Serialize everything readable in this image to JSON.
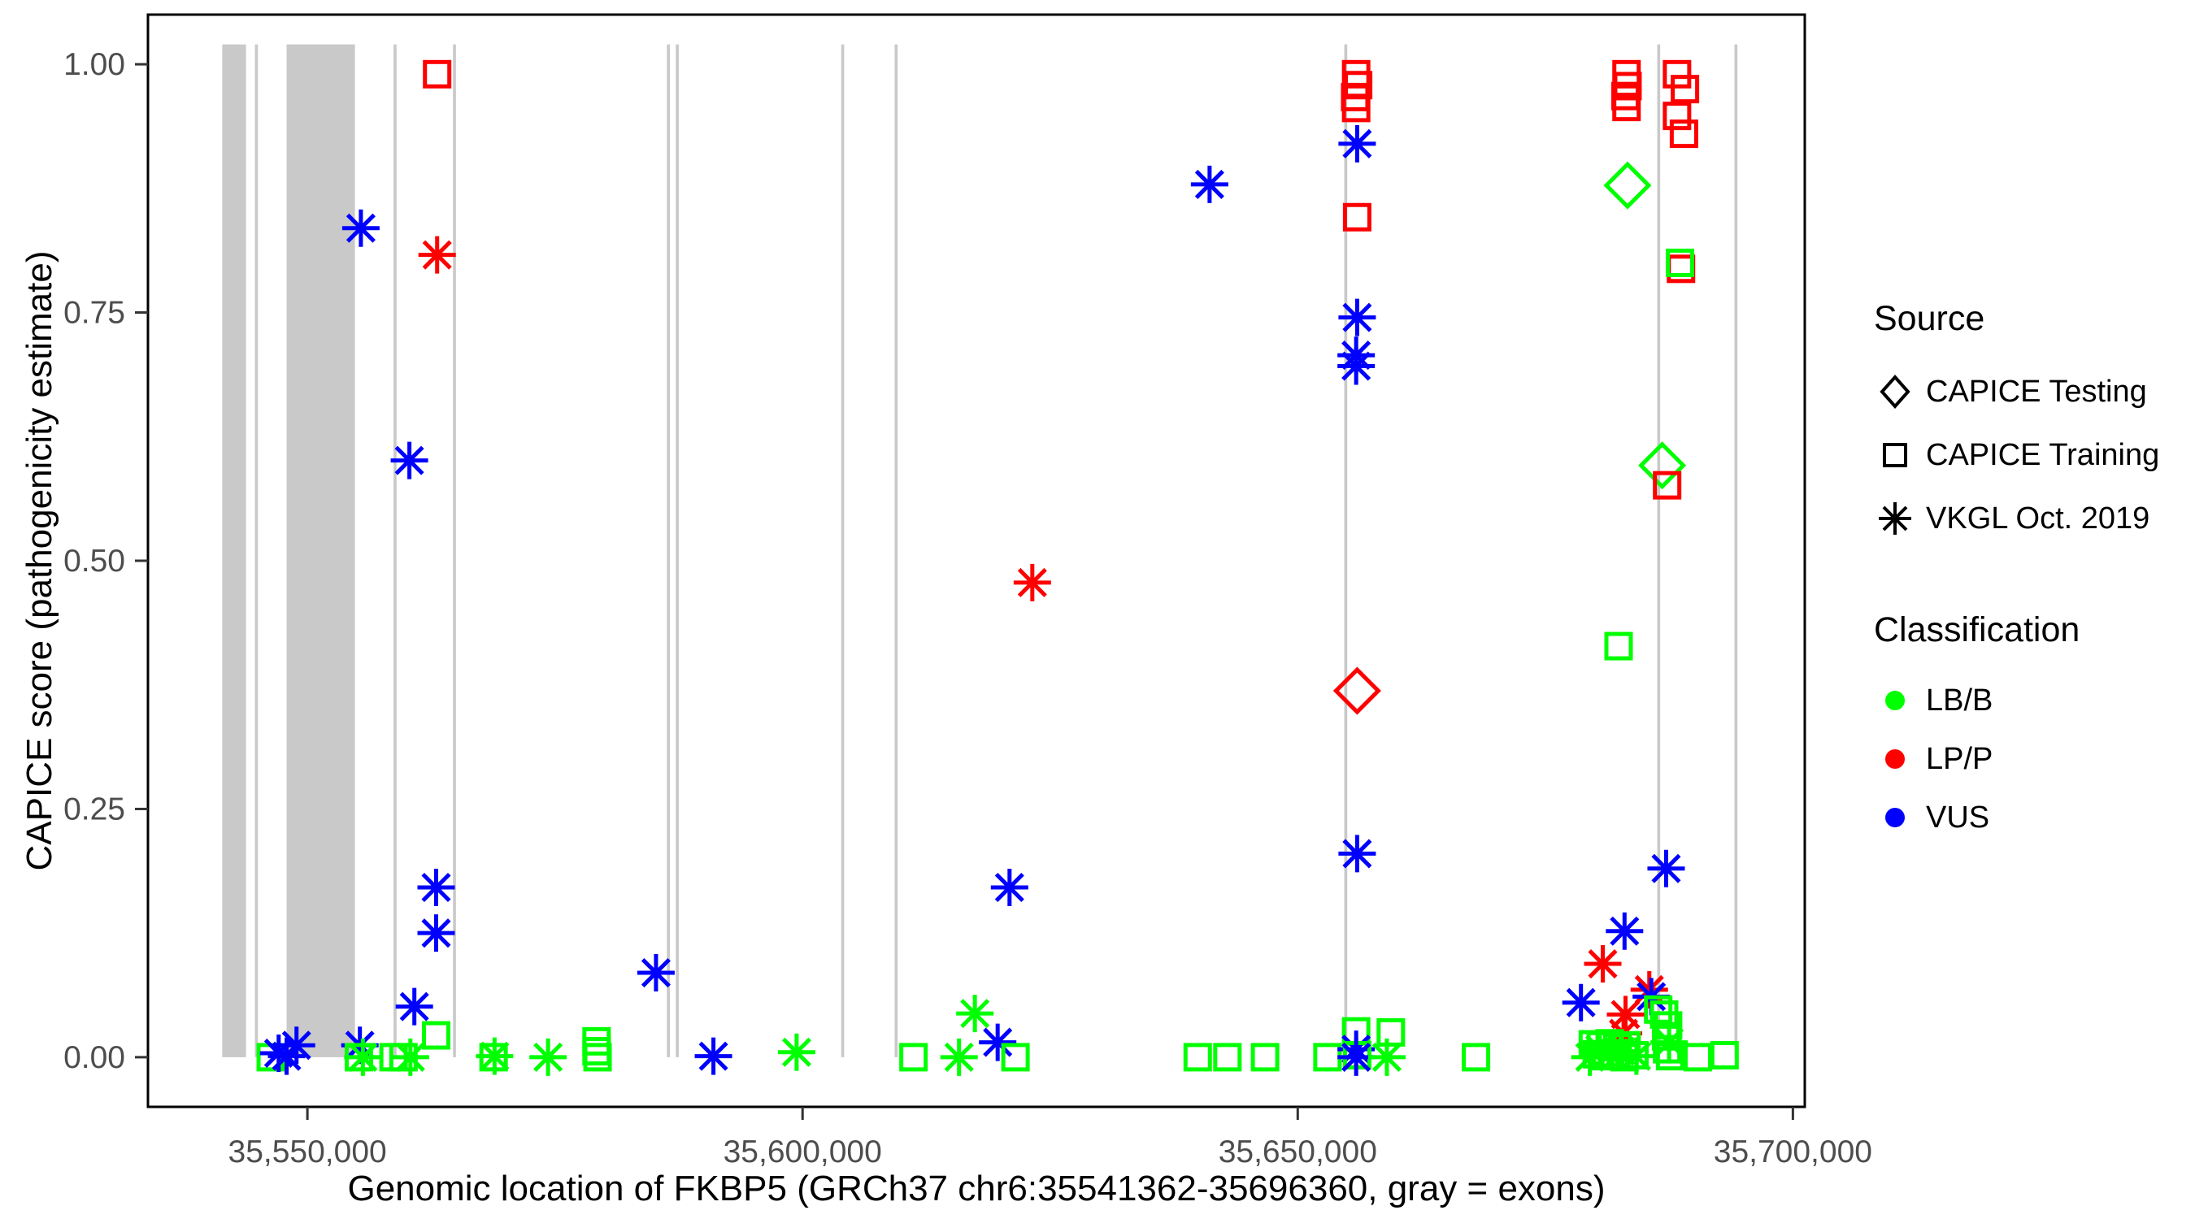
{
  "chart_data": {
    "type": "scatter",
    "title": "",
    "xlabel": "Genomic location of FKBP5 (GRCh37 chr6:35541362-35696360, gray = exons)",
    "ylabel": "CAPICE score (pathogenicity estimate)",
    "x_domain": [
      35533900,
      35701200
    ],
    "y_domain": [
      -0.05,
      1.05
    ],
    "x_ticks": [
      {
        "value": 35550000,
        "label": "35,550,000"
      },
      {
        "value": 35600000,
        "label": "35,600,000"
      },
      {
        "value": 35650000,
        "label": "35,650,000"
      },
      {
        "value": 35700000,
        "label": "35,700,000"
      }
    ],
    "y_ticks": [
      {
        "value": 0.0,
        "label": "0.00"
      },
      {
        "value": 0.25,
        "label": "0.25"
      },
      {
        "value": 0.5,
        "label": "0.50"
      },
      {
        "value": 0.75,
        "label": "0.75"
      },
      {
        "value": 1.0,
        "label": "1.00"
      }
    ],
    "grid": "off",
    "legend_position": "right",
    "exon_note": "gray = exons",
    "exons": [
      [
        35541400,
        35543800
      ],
      [
        35544700,
        35545000
      ],
      [
        35547900,
        35554800
      ],
      [
        35558700,
        35559000
      ],
      [
        35564700,
        35565000
      ],
      [
        35586300,
        35586600
      ],
      [
        35587200,
        35587500
      ],
      [
        35603900,
        35604200
      ],
      [
        35609300,
        35609600
      ],
      [
        35654700,
        35655000
      ],
      [
        35686300,
        35686600
      ],
      [
        35694100,
        35694400
      ]
    ],
    "shape_key": {
      "sq": "CAPICE Training",
      "di": "CAPICE Testing",
      "as": "VKGL Oct. 2019"
    },
    "colors": {
      "LB/B": "#00ff00",
      "LP/P": "#ff0000",
      "VUS": "#0000ff",
      "exon": "#c9c9c9",
      "axis_text": "#4d4d4d",
      "border": "#000000"
    },
    "points": [
      {
        "x": 35546300,
        "y": 0.0,
        "s": "sq",
        "c": "LB/B"
      },
      {
        "x": 35547100,
        "y": 0.004,
        "s": "as",
        "c": "VUS"
      },
      {
        "x": 35547900,
        "y": 0.001,
        "s": "as",
        "c": "VUS"
      },
      {
        "x": 35548900,
        "y": 0.012,
        "s": "as",
        "c": "VUS"
      },
      {
        "x": 35555400,
        "y": 0.835,
        "s": "as",
        "c": "VUS"
      },
      {
        "x": 35555300,
        "y": 0.012,
        "s": "as",
        "c": "VUS"
      },
      {
        "x": 35555200,
        "y": 0.0,
        "s": "sq",
        "c": "LB/B"
      },
      {
        "x": 35555600,
        "y": 0.0,
        "s": "as",
        "c": "LB/B"
      },
      {
        "x": 35558700,
        "y": 0.0,
        "s": "sq",
        "c": "LB/B"
      },
      {
        "x": 35559700,
        "y": 0.0,
        "s": "sq",
        "c": "LB/B"
      },
      {
        "x": 35560400,
        "y": 0.0,
        "s": "as",
        "c": "LB/B"
      },
      {
        "x": 35560800,
        "y": 0.051,
        "s": "as",
        "c": "VUS"
      },
      {
        "x": 35560300,
        "y": 0.601,
        "s": "as",
        "c": "VUS"
      },
      {
        "x": 35563100,
        "y": 0.99,
        "s": "sq",
        "c": "LP/P"
      },
      {
        "x": 35563100,
        "y": 0.808,
        "s": "as",
        "c": "LP/P"
      },
      {
        "x": 35563000,
        "y": 0.171,
        "s": "as",
        "c": "VUS"
      },
      {
        "x": 35563000,
        "y": 0.125,
        "s": "as",
        "c": "VUS"
      },
      {
        "x": 35563000,
        "y": 0.022,
        "s": "sq",
        "c": "LB/B"
      },
      {
        "x": 35568900,
        "y": 0.001,
        "s": "as",
        "c": "LB/B"
      },
      {
        "x": 35568800,
        "y": 0.0,
        "s": "sq",
        "c": "LB/B"
      },
      {
        "x": 35574300,
        "y": 0.0,
        "s": "as",
        "c": "LB/B"
      },
      {
        "x": 35579200,
        "y": 0.016,
        "s": "sq",
        "c": "LB/B"
      },
      {
        "x": 35579200,
        "y": 0.006,
        "s": "sq",
        "c": "LB/B"
      },
      {
        "x": 35579300,
        "y": 0.0,
        "s": "sq",
        "c": "LB/B"
      },
      {
        "x": 35585200,
        "y": 0.085,
        "s": "as",
        "c": "VUS"
      },
      {
        "x": 35591000,
        "y": 0.001,
        "s": "as",
        "c": "VUS"
      },
      {
        "x": 35599400,
        "y": 0.005,
        "s": "as",
        "c": "LB/B"
      },
      {
        "x": 35611200,
        "y": 0.0,
        "s": "sq",
        "c": "LB/B"
      },
      {
        "x": 35615800,
        "y": 0.0,
        "s": "as",
        "c": "LB/B"
      },
      {
        "x": 35617400,
        "y": 0.044,
        "s": "as",
        "c": "LB/B"
      },
      {
        "x": 35619700,
        "y": 0.015,
        "s": "as",
        "c": "VUS"
      },
      {
        "x": 35621500,
        "y": 0.0,
        "s": "sq",
        "c": "LB/B"
      },
      {
        "x": 35620900,
        "y": 0.171,
        "s": "as",
        "c": "VUS"
      },
      {
        "x": 35623200,
        "y": 0.478,
        "s": "as",
        "c": "LP/P"
      },
      {
        "x": 35641100,
        "y": 0.879,
        "s": "as",
        "c": "VUS"
      },
      {
        "x": 35639900,
        "y": 0.0,
        "s": "sq",
        "c": "LB/B"
      },
      {
        "x": 35642900,
        "y": 0.0,
        "s": "sq",
        "c": "LB/B"
      },
      {
        "x": 35646700,
        "y": 0.0,
        "s": "sq",
        "c": "LB/B"
      },
      {
        "x": 35653000,
        "y": 0.0,
        "s": "sq",
        "c": "LB/B"
      },
      {
        "x": 35655900,
        "y": 0.99,
        "s": "sq",
        "c": "LP/P"
      },
      {
        "x": 35656100,
        "y": 0.979,
        "s": "sq",
        "c": "LP/P"
      },
      {
        "x": 35655800,
        "y": 0.967,
        "s": "sq",
        "c": "LP/P"
      },
      {
        "x": 35655900,
        "y": 0.956,
        "s": "sq",
        "c": "LP/P"
      },
      {
        "x": 35656000,
        "y": 0.92,
        "s": "as",
        "c": "VUS"
      },
      {
        "x": 35656000,
        "y": 0.846,
        "s": "sq",
        "c": "LP/P"
      },
      {
        "x": 35656000,
        "y": 0.745,
        "s": "as",
        "c": "VUS"
      },
      {
        "x": 35655900,
        "y": 0.707,
        "s": "as",
        "c": "VUS"
      },
      {
        "x": 35655900,
        "y": 0.696,
        "s": "as",
        "c": "VUS"
      },
      {
        "x": 35656000,
        "y": 0.369,
        "s": "di",
        "c": "LP/P"
      },
      {
        "x": 35656000,
        "y": 0.205,
        "s": "as",
        "c": "VUS"
      },
      {
        "x": 35655900,
        "y": 0.026,
        "s": "sq",
        "c": "LB/B"
      },
      {
        "x": 35659400,
        "y": 0.025,
        "s": "sq",
        "c": "LB/B"
      },
      {
        "x": 35655900,
        "y": 0.008,
        "s": "as",
        "c": "VUS"
      },
      {
        "x": 35656000,
        "y": 0.002,
        "s": "sq",
        "c": "LB/B"
      },
      {
        "x": 35655900,
        "y": 0.0,
        "s": "as",
        "c": "VUS"
      },
      {
        "x": 35659000,
        "y": 0.0,
        "s": "as",
        "c": "LB/B"
      },
      {
        "x": 35668000,
        "y": 0.0,
        "s": "sq",
        "c": "LB/B"
      },
      {
        "x": 35683200,
        "y": 0.99,
        "s": "sq",
        "c": "LP/P"
      },
      {
        "x": 35683300,
        "y": 0.978,
        "s": "sq",
        "c": "LP/P"
      },
      {
        "x": 35683100,
        "y": 0.968,
        "s": "sq",
        "c": "LP/P"
      },
      {
        "x": 35683200,
        "y": 0.957,
        "s": "sq",
        "c": "LP/P"
      },
      {
        "x": 35688300,
        "y": 0.99,
        "s": "sq",
        "c": "LP/P"
      },
      {
        "x": 35689100,
        "y": 0.975,
        "s": "sq",
        "c": "LP/P"
      },
      {
        "x": 35688300,
        "y": 0.948,
        "s": "sq",
        "c": "LP/P"
      },
      {
        "x": 35689000,
        "y": 0.93,
        "s": "sq",
        "c": "LP/P"
      },
      {
        "x": 35683300,
        "y": 0.878,
        "s": "di",
        "c": "LB/B"
      },
      {
        "x": 35688700,
        "y": 0.794,
        "s": "sq",
        "c": "LP/P"
      },
      {
        "x": 35688600,
        "y": 0.8,
        "s": "sq",
        "c": "LB/B"
      },
      {
        "x": 35686800,
        "y": 0.596,
        "s": "di",
        "c": "LB/B"
      },
      {
        "x": 35687300,
        "y": 0.576,
        "s": "sq",
        "c": "LP/P"
      },
      {
        "x": 35682400,
        "y": 0.414,
        "s": "sq",
        "c": "LB/B"
      },
      {
        "x": 35687200,
        "y": 0.19,
        "s": "as",
        "c": "VUS"
      },
      {
        "x": 35683000,
        "y": 0.127,
        "s": "as",
        "c": "VUS"
      },
      {
        "x": 35680800,
        "y": 0.094,
        "s": "as",
        "c": "LP/P"
      },
      {
        "x": 35678600,
        "y": 0.055,
        "s": "as",
        "c": "VUS"
      },
      {
        "x": 35685500,
        "y": 0.068,
        "s": "as",
        "c": "LP/P"
      },
      {
        "x": 35685700,
        "y": 0.061,
        "s": "as",
        "c": "VUS"
      },
      {
        "x": 35686400,
        "y": 0.048,
        "s": "sq",
        "c": "LB/B"
      },
      {
        "x": 35683100,
        "y": 0.043,
        "s": "as",
        "c": "LP/P"
      },
      {
        "x": 35682900,
        "y": 0.024,
        "s": "as",
        "c": "LP/P"
      },
      {
        "x": 35679800,
        "y": 0.013,
        "s": "sq",
        "c": "LB/B"
      },
      {
        "x": 35680600,
        "y": 0.012,
        "s": "sq",
        "c": "LB/B"
      },
      {
        "x": 35681500,
        "y": 0.014,
        "s": "sq",
        "c": "LB/B"
      },
      {
        "x": 35682300,
        "y": 0.01,
        "s": "sq",
        "c": "LB/B"
      },
      {
        "x": 35683200,
        "y": 0.012,
        "s": "sq",
        "c": "LB/B"
      },
      {
        "x": 35680200,
        "y": 0.003,
        "s": "sq",
        "c": "LB/B"
      },
      {
        "x": 35681000,
        "y": 0.001,
        "s": "sq",
        "c": "LB/B"
      },
      {
        "x": 35682000,
        "y": 0.004,
        "s": "sq",
        "c": "LB/B"
      },
      {
        "x": 35683000,
        "y": 0.0,
        "s": "sq",
        "c": "LB/B"
      },
      {
        "x": 35684000,
        "y": 0.002,
        "s": "sq",
        "c": "LB/B"
      },
      {
        "x": 35680500,
        "y": 0.008,
        "s": "as",
        "c": "LB/B"
      },
      {
        "x": 35682600,
        "y": 0.006,
        "s": "as",
        "c": "LB/B"
      },
      {
        "x": 35684200,
        "y": 0.001,
        "s": "as",
        "c": "LB/B"
      },
      {
        "x": 35679500,
        "y": 0.0,
        "s": "as",
        "c": "LB/B"
      },
      {
        "x": 35687000,
        "y": 0.043,
        "s": "sq",
        "c": "LB/B"
      },
      {
        "x": 35687400,
        "y": 0.032,
        "s": "sq",
        "c": "LB/B"
      },
      {
        "x": 35687200,
        "y": 0.021,
        "s": "sq",
        "c": "LB/B"
      },
      {
        "x": 35687500,
        "y": 0.015,
        "s": "as",
        "c": "LB/B"
      },
      {
        "x": 35687300,
        "y": 0.008,
        "s": "sq",
        "c": "LB/B"
      },
      {
        "x": 35687600,
        "y": 0.001,
        "s": "sq",
        "c": "LB/B"
      },
      {
        "x": 35690400,
        "y": 0.0,
        "s": "sq",
        "c": "LB/B"
      },
      {
        "x": 35693100,
        "y": 0.002,
        "s": "sq",
        "c": "LB/B"
      }
    ]
  },
  "legend": {
    "source": {
      "title": "Source",
      "items": [
        {
          "shape": "diamond",
          "label": "CAPICE Testing"
        },
        {
          "shape": "square",
          "label": "CAPICE Training"
        },
        {
          "shape": "asterisk",
          "label": "VKGL Oct. 2019"
        }
      ]
    },
    "classification": {
      "title": "Classification",
      "items": [
        {
          "label": "LB/B",
          "color": "#00ff00"
        },
        {
          "label": "LP/P",
          "color": "#ff0000"
        },
        {
          "label": "VUS",
          "color": "#0000ff"
        }
      ]
    }
  }
}
